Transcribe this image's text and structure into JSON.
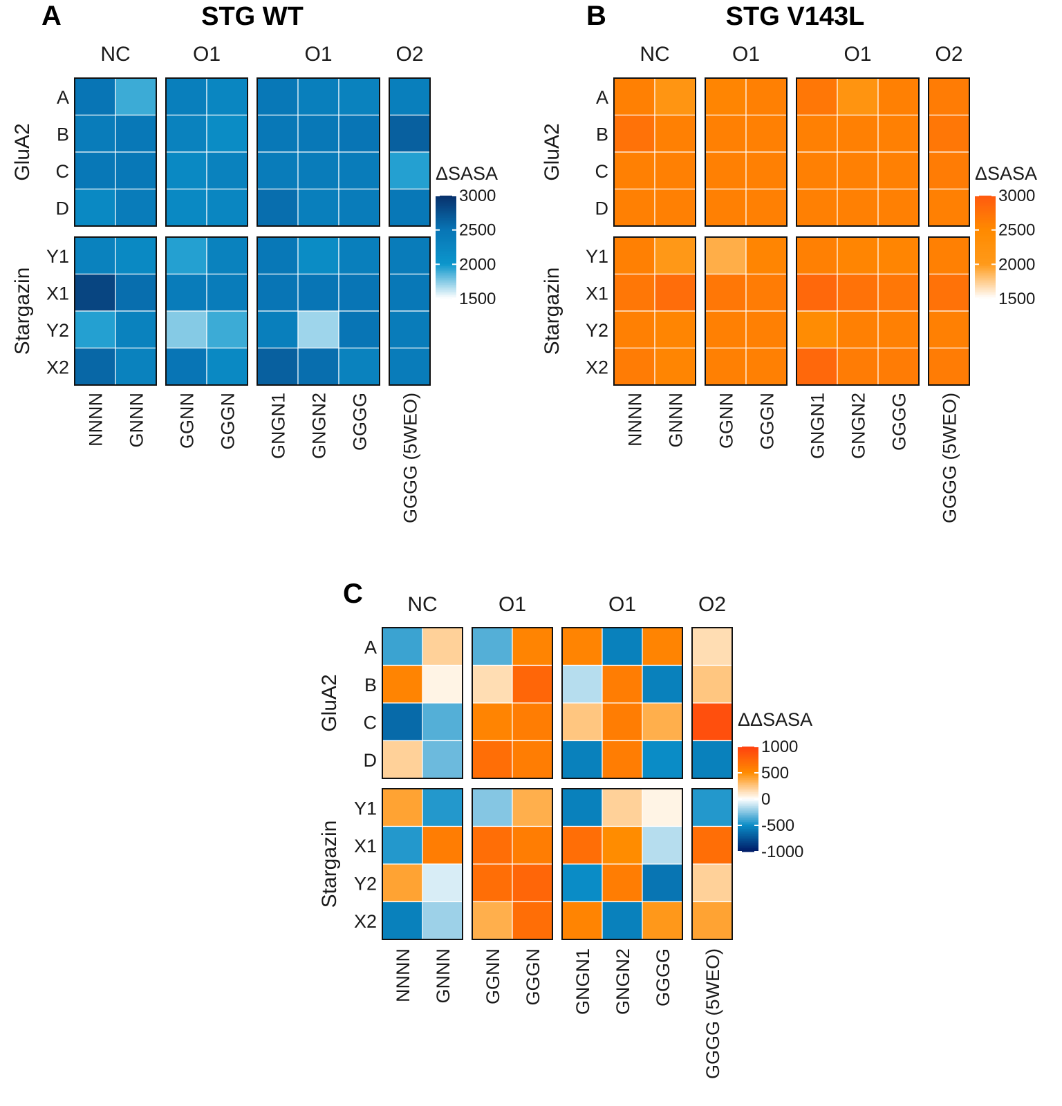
{
  "chart_data": [
    {
      "type": "heatmap",
      "panel": "A",
      "title": "STG WT",
      "groups": [
        "NC",
        "O1",
        "O1",
        "O2"
      ],
      "group_sizes": [
        2,
        2,
        3,
        1
      ],
      "columns": [
        "NNNN",
        "GNNN",
        "GGNN",
        "GGGN",
        "GNGN1",
        "GNGN2",
        "GGGG",
        "GGGG (5WEO)"
      ],
      "row_groups": [
        {
          "name": "GluA2",
          "rows": [
            "A",
            "B",
            "C",
            "D"
          ]
        },
        {
          "name": "Stargazin",
          "rows": [
            "Y1",
            "X1",
            "Y2",
            "X2"
          ]
        }
      ],
      "values": [
        [
          2500,
          1900,
          2350,
          2250,
          2450,
          2350,
          2300,
          2350
        ],
        [
          2400,
          2450,
          2300,
          2150,
          2450,
          2450,
          2500,
          2650
        ],
        [
          2450,
          2450,
          2200,
          2300,
          2400,
          2400,
          2400,
          1950
        ],
        [
          2200,
          2400,
          2200,
          2250,
          2550,
          2350,
          2400,
          2450
        ],
        [
          2300,
          2200,
          1950,
          2300,
          2450,
          2150,
          2350,
          2400
        ],
        [
          2850,
          2550,
          2400,
          2400,
          2500,
          2500,
          2500,
          2450
        ],
        [
          1950,
          2300,
          1750,
          1900,
          2350,
          1700,
          2500,
          2400
        ],
        [
          2600,
          2300,
          2500,
          2200,
          2650,
          2550,
          2300,
          2400
        ]
      ],
      "legend": {
        "title": "ΔSASA",
        "ticks": [
          "3000",
          "2500",
          "2000",
          "1500"
        ],
        "range": [
          1500,
          3000
        ]
      }
    },
    {
      "type": "heatmap",
      "panel": "B",
      "title": "STG V143L",
      "groups": [
        "NC",
        "O1",
        "O1",
        "O2"
      ],
      "group_sizes": [
        2,
        2,
        3,
        1
      ],
      "columns": [
        "NNNN",
        "GNNN",
        "GGNN",
        "GGGN",
        "GNGN1",
        "GNGN2",
        "GGGG",
        "GGGG (5WEO)"
      ],
      "row_groups": [
        {
          "name": "GluA2",
          "rows": [
            "A",
            "B",
            "C",
            "D"
          ]
        },
        {
          "name": "Stargazin",
          "rows": [
            "Y1",
            "X1",
            "Y2",
            "X2"
          ]
        }
      ],
      "values": [
        [
          2600,
          2150,
          2550,
          2600,
          2700,
          2200,
          2600,
          2650
        ],
        [
          2750,
          2600,
          2600,
          2600,
          2600,
          2600,
          2600,
          2700
        ],
        [
          2600,
          2600,
          2600,
          2600,
          2600,
          2600,
          2600,
          2650
        ],
        [
          2600,
          2600,
          2600,
          2600,
          2600,
          2600,
          2600,
          2600
        ],
        [
          2600,
          2050,
          1900,
          2550,
          2600,
          2550,
          2550,
          2600
        ],
        [
          2700,
          2800,
          2700,
          2650,
          2850,
          2750,
          2700,
          2750
        ],
        [
          2600,
          2550,
          2600,
          2600,
          2450,
          2600,
          2600,
          2600
        ],
        [
          2650,
          2550,
          2600,
          2600,
          2850,
          2650,
          2650,
          2650
        ]
      ],
      "legend": {
        "title": "ΔSASA",
        "ticks": [
          "3000",
          "2500",
          "2000",
          "1500"
        ],
        "range": [
          1500,
          3000
        ]
      }
    },
    {
      "type": "heatmap",
      "panel": "C",
      "title": "",
      "groups": [
        "NC",
        "O1",
        "O1",
        "O2"
      ],
      "group_sizes": [
        2,
        2,
        3,
        1
      ],
      "columns": [
        "NNNN",
        "GNNN",
        "GGNN",
        "GGGN",
        "GNGN1",
        "GNGN2",
        "GGGG",
        "GGGG (5WEO)"
      ],
      "row_groups": [
        {
          "name": "GluA2",
          "rows": [
            "A",
            "B",
            "C",
            "D"
          ]
        },
        {
          "name": "Stargazin",
          "rows": [
            "Y1",
            "X1",
            "Y2",
            "X2"
          ]
        }
      ],
      "values": [
        [
          -400,
          200,
          -350,
          550,
          550,
          -550,
          550,
          150
        ],
        [
          550,
          50,
          150,
          750,
          -150,
          600,
          -550,
          250
        ],
        [
          -650,
          -350,
          550,
          600,
          250,
          600,
          350,
          900
        ],
        [
          200,
          -300,
          700,
          600,
          -550,
          600,
          -500,
          -550
        ],
        [
          400,
          -450,
          -250,
          350,
          -550,
          200,
          50,
          -450
        ],
        [
          -450,
          600,
          700,
          600,
          700,
          500,
          -150,
          700
        ],
        [
          400,
          -80,
          700,
          750,
          -500,
          600,
          -600,
          200
        ],
        [
          -550,
          -200,
          350,
          700,
          550,
          -550,
          450,
          400
        ]
      ],
      "legend": {
        "title": "ΔΔSASA",
        "ticks": [
          "1000",
          "500",
          "0",
          "-500",
          "-1000"
        ],
        "range": [
          -1000,
          1000
        ]
      }
    }
  ]
}
